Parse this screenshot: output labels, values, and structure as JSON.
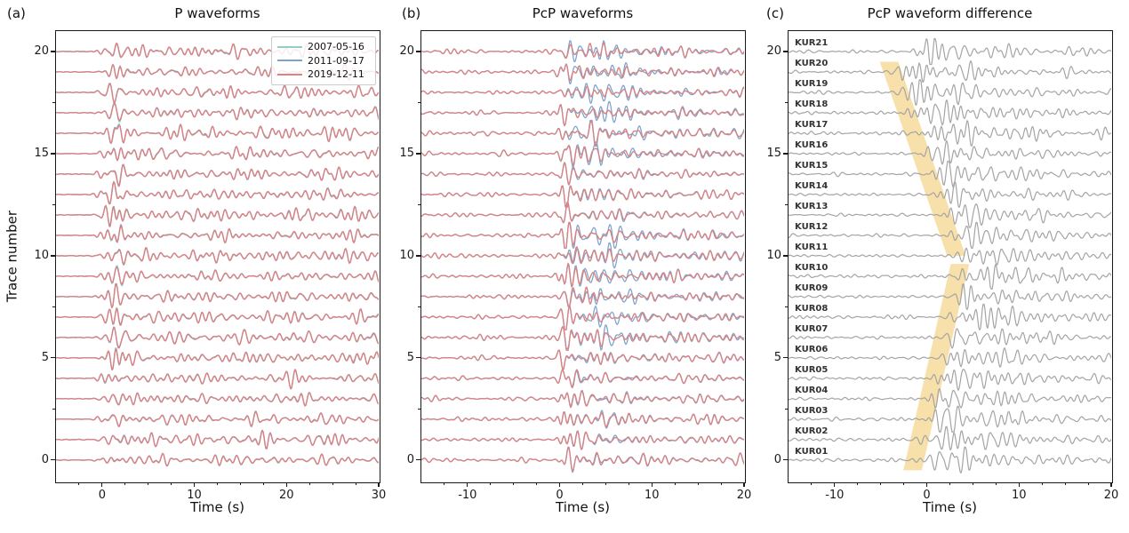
{
  "figure": {
    "background": "#ffffff"
  },
  "chart_data": [
    {
      "type": "waveform",
      "panel": "a",
      "panel_letter": "(a)",
      "title": "P waveforms",
      "xlabel": "Time (s)",
      "ylabel": "Trace number",
      "xlim": [
        -5,
        30
      ],
      "ylim": [
        -1.05,
        21.0
      ],
      "xticks": [
        0,
        10,
        20,
        30
      ],
      "xtick_labels": [
        "0",
        "10",
        "20",
        "30"
      ],
      "xticks_minor": [
        -2.5,
        2.5,
        5,
        7.5,
        12.5,
        15,
        17.5,
        22.5,
        25,
        27.5
      ],
      "yticks": [
        0,
        5,
        10,
        15,
        20
      ],
      "ytick_labels": [
        "0",
        "5",
        "10",
        "15",
        "20"
      ],
      "yticks_minor": [
        2.5,
        7.5,
        12.5,
        17.5
      ],
      "n_traces": 21,
      "legend": {
        "position": "upper right",
        "entries": [
          {
            "label": "2007-05-16",
            "color": "#8fd0c6"
          },
          {
            "label": "2011-09-17",
            "color": "#7ba3cc"
          },
          {
            "label": "2019-12-11",
            "color": "#df8182"
          }
        ]
      },
      "waveform": {
        "onset_s": -0.8,
        "main_pulse_s": 1.6,
        "dominant_freq_hz": [
          0.55,
          1.45
        ],
        "typical_amp_trace_units": 0.3
      }
    },
    {
      "type": "waveform",
      "panel": "b",
      "panel_letter": "(b)",
      "title": "PcP waveforms",
      "xlabel": "Time (s)",
      "xlim": [
        -15,
        20
      ],
      "ylim": [
        -1.05,
        21.0
      ],
      "xticks": [
        -10,
        0,
        10,
        20
      ],
      "xtick_labels": [
        "-10",
        "0",
        "10",
        "20"
      ],
      "xticks_minor": [
        -12.5,
        -7.5,
        -5,
        -2.5,
        2.5,
        5,
        7.5,
        12.5,
        15,
        17.5
      ],
      "yticks": [
        0,
        5,
        10,
        15,
        20
      ],
      "ytick_labels": [
        "0",
        "5",
        "10",
        "15",
        "20"
      ],
      "yticks_minor": [
        2.5,
        7.5,
        12.5,
        17.5
      ],
      "n_traces": 21,
      "waveform": {
        "arrival_s": 0,
        "background_amp": 0.1,
        "burst_amp": 0.5,
        "divergent_traces": [
          6,
          7,
          8,
          9,
          10,
          11,
          15,
          16,
          17,
          18,
          19,
          20
        ]
      }
    },
    {
      "type": "waveform",
      "panel": "c",
      "panel_letter": "(c)",
      "title": "PcP waveform difference",
      "xlabel": "Time (s)",
      "xlim": [
        -15,
        20
      ],
      "ylim": [
        -1.05,
        21.0
      ],
      "xticks": [
        -10,
        0,
        10,
        20
      ],
      "xtick_labels": [
        "-10",
        "0",
        "10",
        "20"
      ],
      "xticks_minor": [
        -12.5,
        -7.5,
        -5,
        -2.5,
        2.5,
        5,
        7.5,
        12.5,
        15,
        17.5
      ],
      "yticks": [
        0,
        5,
        10,
        15,
        20
      ],
      "ytick_labels": [
        "0",
        "5",
        "10",
        "15",
        "20"
      ],
      "yticks_minor": [
        2.5,
        7.5,
        12.5,
        17.5
      ],
      "trace_color": "#a4a4a4",
      "stations": [
        "KUR01",
        "KUR02",
        "KUR03",
        "KUR04",
        "KUR05",
        "KUR06",
        "KUR07",
        "KUR08",
        "KUR09",
        "KUR10",
        "KUR11",
        "KUR12",
        "KUR13",
        "KUR14",
        "KUR15",
        "KUR16",
        "KUR17",
        "KUR18",
        "KUR19",
        "KUR20",
        "KUR21"
      ],
      "onset_s_per_station": [
        -1.3,
        -0.8,
        -0.3,
        0.2,
        0.7,
        1.3,
        1.8,
        2.3,
        2.8,
        3.3,
        3.2,
        2.4,
        1.7,
        0.9,
        0.1,
        -0.7,
        -1.4,
        -2.2,
        -3.0,
        -3.7,
        -1.8
      ],
      "highlight_band": {
        "color": "#f8e0ab",
        "segments": [
          {
            "trace_from": -0.5,
            "t_center_from": -1.55,
            "trace_to": 9.6,
            "t_center_to": 3.6,
            "half_width_s": 1.0
          },
          {
            "trace_from": 10.0,
            "t_center_from": 3.2,
            "trace_to": 19.5,
            "t_center_to": -4.1,
            "half_width_s": 1.0
          }
        ]
      }
    }
  ]
}
